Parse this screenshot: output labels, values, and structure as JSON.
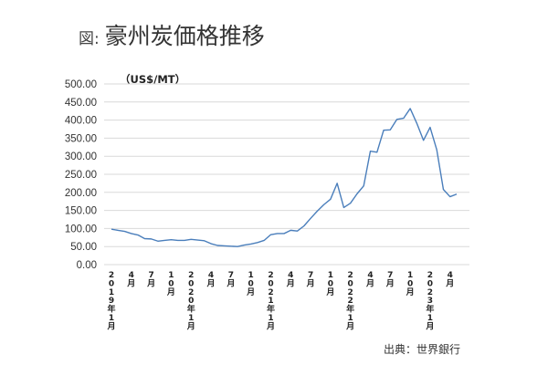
{
  "header": {
    "prefix": "図:",
    "title": "豪州炭価格推移"
  },
  "footer": {
    "source": "出典：世界銀行"
  },
  "chart_data": {
    "type": "line",
    "title": "豪州炭価格推移",
    "ylabel": "（US$/MT）",
    "xlabel": "",
    "ylim": [
      0,
      500
    ],
    "yticks": [
      "0.00",
      "50.00",
      "100.00",
      "150.00",
      "200.00",
      "250.00",
      "300.00",
      "350.00",
      "400.00",
      "450.00",
      "500.00"
    ],
    "grid": true,
    "line_color": "#4a7ebb",
    "xtick_labels": [
      {
        "i": 0,
        "text": "2019年1月"
      },
      {
        "i": 3,
        "text": "4月"
      },
      {
        "i": 6,
        "text": "7月"
      },
      {
        "i": 9,
        "text": "10月"
      },
      {
        "i": 12,
        "text": "2020年1月"
      },
      {
        "i": 15,
        "text": "4月"
      },
      {
        "i": 18,
        "text": "7月"
      },
      {
        "i": 21,
        "text": "10月"
      },
      {
        "i": 24,
        "text": "2021年1月"
      },
      {
        "i": 27,
        "text": "4月"
      },
      {
        "i": 30,
        "text": "7月"
      },
      {
        "i": 33,
        "text": "10月"
      },
      {
        "i": 36,
        "text": "2022年1月"
      },
      {
        "i": 39,
        "text": "4月"
      },
      {
        "i": 42,
        "text": "7月"
      },
      {
        "i": 45,
        "text": "10月"
      },
      {
        "i": 48,
        "text": "2023年1月"
      },
      {
        "i": 51,
        "text": "4月"
      }
    ],
    "series": [
      {
        "name": "",
        "values": [
          98,
          95,
          92,
          86,
          82,
          72,
          71,
          65,
          67,
          69,
          67,
          67,
          70,
          68,
          66,
          58,
          53,
          52,
          51,
          50,
          54,
          57,
          61,
          67,
          83,
          86,
          86,
          95,
          93,
          107,
          128,
          148,
          166,
          181,
          225,
          158,
          170,
          196,
          218,
          314,
          311,
          372,
          373,
          402,
          405,
          432,
          391,
          344,
          380,
          318,
          208,
          188,
          195
        ]
      }
    ]
  }
}
